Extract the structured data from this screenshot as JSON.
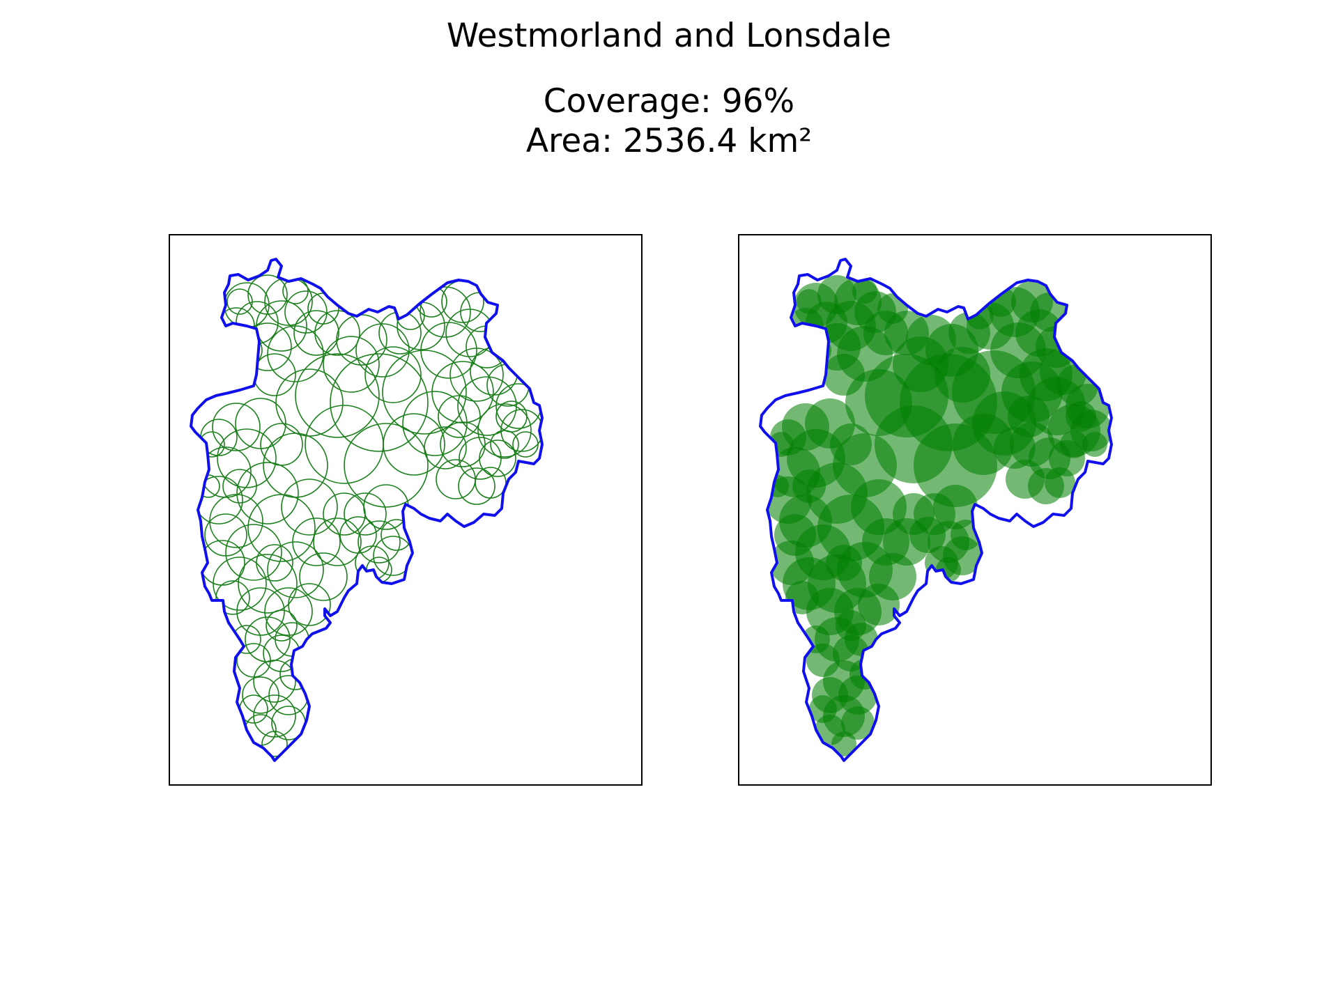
{
  "figure": {
    "title": "Westmorland and Lonsdale",
    "coverage_label": "Coverage: 96%",
    "area_label": "Area: 2536.4 km²"
  },
  "map": {
    "region": "Westmorland and Lonsdale",
    "coverage_percent": 96,
    "area_km2": 2536.4,
    "panels": [
      {
        "name": "circle-outlines",
        "circle_style": "outline"
      },
      {
        "name": "circle-fills",
        "circle_style": "filled"
      }
    ],
    "colors": {
      "boundary": "#1010ee",
      "circle_outline": "#1a7f1a",
      "circle_fill": "#008000"
    }
  }
}
